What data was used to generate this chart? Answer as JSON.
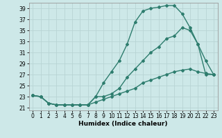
{
  "title": "",
  "xlabel": "Humidex (Indice chaleur)",
  "ylabel": "",
  "background_color": "#cde8e8",
  "grid_color": "#b8d4d4",
  "line_color": "#2e7d6e",
  "xlim": [
    -0.5,
    23.5
  ],
  "ylim": [
    20.5,
    40.0
  ],
  "yticks": [
    21,
    23,
    25,
    27,
    29,
    31,
    33,
    35,
    37,
    39
  ],
  "xticks": [
    0,
    1,
    2,
    3,
    4,
    5,
    6,
    7,
    8,
    9,
    10,
    11,
    12,
    13,
    14,
    15,
    16,
    17,
    18,
    19,
    20,
    21,
    22,
    23
  ],
  "line1_x": [
    0,
    1,
    2,
    3,
    4,
    5,
    6,
    7,
    8,
    9,
    10,
    11,
    12,
    13,
    14,
    15,
    16,
    17,
    18,
    19,
    20,
    21,
    22,
    23
  ],
  "line1_y": [
    23.2,
    23.0,
    21.8,
    21.5,
    21.5,
    21.5,
    21.5,
    21.5,
    23.0,
    25.5,
    27.5,
    29.5,
    32.5,
    36.5,
    38.5,
    39.0,
    39.2,
    39.5,
    39.5,
    38.0,
    35.5,
    32.5,
    29.5,
    27.0
  ],
  "line2_x": [
    0,
    1,
    2,
    3,
    4,
    5,
    6,
    7,
    8,
    9,
    10,
    11,
    12,
    13,
    14,
    15,
    16,
    17,
    18,
    19,
    20,
    21,
    22,
    23
  ],
  "line2_y": [
    23.2,
    23.0,
    21.8,
    21.5,
    21.5,
    21.5,
    21.5,
    21.5,
    23.0,
    23.0,
    23.5,
    24.5,
    26.5,
    28.0,
    29.5,
    31.0,
    32.0,
    33.5,
    34.0,
    35.5,
    35.0,
    32.5,
    27.0,
    27.0
  ],
  "line3_x": [
    0,
    1,
    2,
    3,
    4,
    5,
    6,
    7,
    8,
    9,
    10,
    11,
    12,
    13,
    14,
    15,
    16,
    17,
    18,
    19,
    20,
    21,
    22,
    23
  ],
  "line3_y": [
    23.2,
    23.0,
    21.8,
    21.5,
    21.5,
    21.5,
    21.5,
    21.5,
    22.0,
    22.5,
    23.0,
    23.5,
    24.0,
    24.5,
    25.5,
    26.0,
    26.5,
    27.0,
    27.5,
    27.8,
    28.0,
    27.5,
    27.2,
    27.0
  ],
  "marker": "D",
  "markersize": 2.0,
  "linewidth": 1.0,
  "xlabel_fontsize": 6.5,
  "tick_fontsize": 5.5
}
